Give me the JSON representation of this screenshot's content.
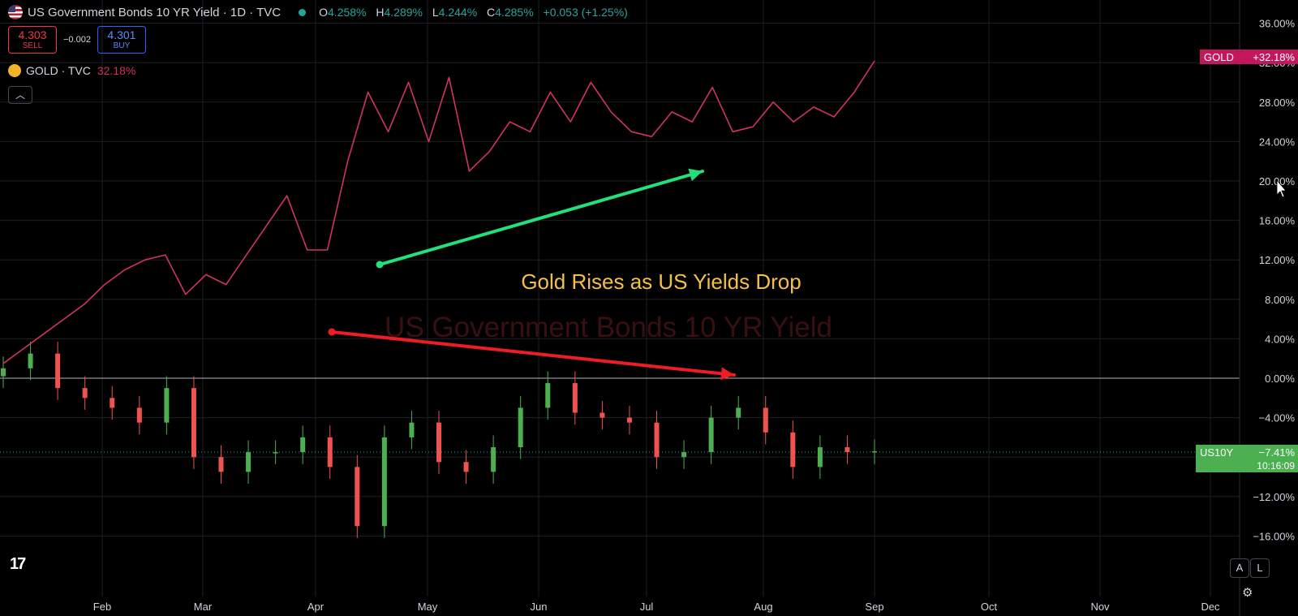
{
  "header": {
    "title": "US Government Bonds 10 YR Yield · 1D · TVC",
    "ohlc": [
      {
        "key": "O",
        "value": "4.258%"
      },
      {
        "key": "H",
        "value": "4.289%"
      },
      {
        "key": "L",
        "value": "4.244%"
      },
      {
        "key": "C",
        "value": "4.285%"
      }
    ],
    "change": "+0.053 (+1.25%)"
  },
  "trade": {
    "sell_price": "4.303",
    "sell_label": "SELL",
    "spread": "−0.002",
    "buy_price": "4.301",
    "buy_label": "BUY"
  },
  "compare": {
    "symbol": "GOLD · TVC",
    "change": "32.18%"
  },
  "collapse_icon": "chevron-up-icon",
  "watermark": "US Government Bonds 10 YR Yield",
  "annotation": "Gold Rises as US Yields Drop",
  "badges": {
    "gold_symbol": "GOLD",
    "gold_value": "+32.18%",
    "us10y_symbol": "US10Y",
    "us10y_value": "−7.41%",
    "countdown": "10:16:09"
  },
  "controls": {
    "auto": "A",
    "log": "L",
    "settings_icon": "gear-icon"
  },
  "colors": {
    "gold_line": "#d1345b",
    "up": "#26a69a",
    "up_fill": "#4caf50",
    "down": "#ef5350",
    "green_arrow": "#22e07a",
    "red_arrow": "#ee1c25",
    "annotation": "#f5c04a"
  },
  "chart_data": {
    "type": "line",
    "y_axis": {
      "unit": "%",
      "ticks": [
        36,
        32,
        28,
        24,
        20,
        16,
        12,
        8,
        4,
        0,
        -4,
        -8,
        -12,
        -16
      ],
      "ylim": [
        -19.5,
        38
      ]
    },
    "x_axis": {
      "ticks": [
        "Feb",
        "Mar",
        "Apr",
        "May",
        "Jun",
        "Jul",
        "Aug",
        "Sep",
        "Oct",
        "Nov",
        "Dec"
      ]
    },
    "legend": "top-left",
    "grid": true,
    "series": [
      {
        "name": "GOLD",
        "type": "line",
        "x": [
          "Jan",
          "Jan",
          "Jan",
          "Jan",
          "Jan",
          "Feb",
          "Feb",
          "Feb",
          "Feb",
          "Mar",
          "Mar",
          "Mar",
          "Mar",
          "Mar",
          "Apr",
          "Apr",
          "Apr",
          "Apr",
          "Apr",
          "Apr",
          "Apr",
          "Apr",
          "May",
          "May",
          "May",
          "May",
          "May",
          "May",
          "Jun",
          "Jun",
          "Jun",
          "Jun",
          "Jun",
          "Jul",
          "Jul",
          "Jul",
          "Jul",
          "Jul",
          "Aug",
          "Aug",
          "Aug",
          "Aug",
          "Aug",
          "Sep"
        ],
        "values": [
          1.5,
          3.0,
          4.5,
          6.0,
          7.5,
          9.5,
          11.0,
          12.0,
          12.5,
          8.5,
          10.5,
          9.5,
          12.5,
          15.5,
          18.5,
          13.0,
          13.0,
          22.0,
          29.0,
          25.0,
          30.0,
          24.0,
          30.5,
          21.0,
          23.0,
          26.0,
          25.0,
          29.0,
          26.0,
          30.0,
          27.0,
          25.0,
          24.5,
          27.0,
          26.0,
          29.5,
          25.0,
          25.5,
          28.0,
          26.0,
          27.5,
          26.5,
          29.0,
          32.18
        ]
      },
      {
        "name": "US10Y",
        "type": "candlestick",
        "x": [
          "Jan",
          "Jan",
          "Jan",
          "Feb",
          "Feb",
          "Feb",
          "Feb",
          "Mar",
          "Mar",
          "Mar",
          "Mar",
          "Apr",
          "Apr",
          "Apr",
          "Apr",
          "Apr",
          "May",
          "May",
          "May",
          "May",
          "Jun",
          "Jun",
          "Jun",
          "Jun",
          "Jul",
          "Jul",
          "Jul",
          "Jul",
          "Aug",
          "Aug",
          "Aug",
          "Aug",
          "Sep"
        ],
        "close": [
          1.0,
          2.5,
          -1.0,
          -2.0,
          -3.0,
          -4.5,
          -1.0,
          -8.0,
          -9.5,
          -7.5,
          -7.5,
          -6.0,
          -9.0,
          -15.0,
          -6.0,
          -4.5,
          -8.5,
          -9.5,
          -7.0,
          -3.0,
          -0.5,
          -3.5,
          -4.0,
          -4.5,
          -8.0,
          -7.5,
          -4.0,
          -3.0,
          -5.5,
          -9.0,
          -7.0,
          -7.5,
          -7.41
        ]
      }
    ],
    "annotations": [
      {
        "text": "Gold Rises as US Yields Drop",
        "x": "Jun",
        "y": 10
      },
      {
        "type": "arrow",
        "color": "green",
        "from": {
          "x": "Apr",
          "y": 11.5
        },
        "to": {
          "x": "Jul",
          "y": 21
        }
      },
      {
        "type": "arrow",
        "color": "red",
        "from": {
          "x": "Apr",
          "y": 4.5
        },
        "to": {
          "x": "Jul",
          "y": 0
        }
      }
    ]
  }
}
